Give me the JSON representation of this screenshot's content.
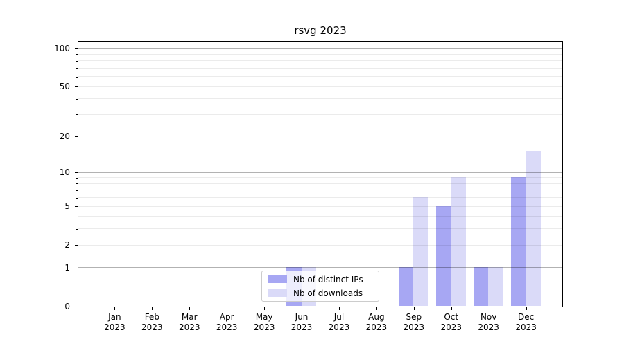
{
  "title": "rsvg 2023",
  "chart_data": {
    "type": "bar",
    "title": "rsvg 2023",
    "categories": [
      "Jan",
      "Feb",
      "Mar",
      "Apr",
      "May",
      "Jun",
      "Jul",
      "Aug",
      "Sep",
      "Oct",
      "Nov",
      "Dec"
    ],
    "category_year_line": "2023",
    "series": [
      {
        "name": "Nb of distinct IPs",
        "color": "#a7a7f3",
        "values": [
          0,
          0,
          0,
          0,
          0,
          1,
          0,
          0,
          1,
          5,
          1,
          9
        ]
      },
      {
        "name": "Nb of downloads",
        "color": "#dadaf8",
        "values": [
          0,
          0,
          0,
          0,
          0,
          1,
          0,
          0,
          6,
          9,
          1,
          15
        ]
      }
    ],
    "yscale": "log1p",
    "ylim": [
      0,
      113
    ],
    "ytick_labels": [
      "100",
      "50",
      "20",
      "10",
      "5",
      "2",
      "1",
      "0"
    ],
    "ytick_values": [
      100,
      50,
      20,
      10,
      5,
      2,
      1,
      0
    ],
    "major_grid_values": [
      1,
      10,
      100
    ],
    "minor_grid_values": [
      2,
      3,
      4,
      5,
      6,
      7,
      8,
      9,
      20,
      30,
      40,
      50,
      60,
      70,
      80,
      90
    ],
    "minor_tick_values": [
      3,
      4,
      6,
      7,
      8,
      9,
      30,
      40,
      60,
      70,
      80,
      90
    ],
    "grid": true,
    "legend_position": "lower center"
  },
  "colors": {
    "background": "#ffffff",
    "spine": "#000000",
    "text": "#000000",
    "major_grid": "rgba(0,0,0,0.30)",
    "minor_grid": "rgba(0,0,0,0.08)",
    "legend_border": "#cccccc"
  }
}
